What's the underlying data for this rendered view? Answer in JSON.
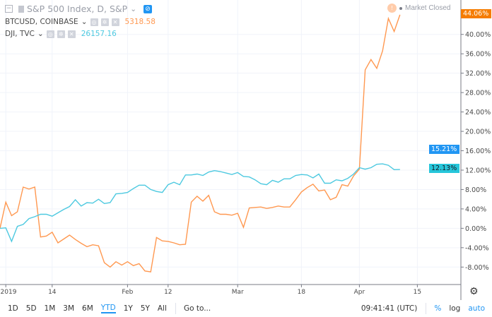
{
  "legend": {
    "main": {
      "title": "S&P 500 Index, D, S&P",
      "chevron": "⌄"
    },
    "series": [
      {
        "label": "BTCUSD, COINBASE",
        "value": "5318.58",
        "color": "#ff9850"
      },
      {
        "label": "DJI, TVC",
        "value": "26157.16",
        "color": "#4dc9e0"
      }
    ]
  },
  "status": {
    "market": "Market Closed"
  },
  "price_labels": [
    {
      "text": "44.06%",
      "color": "#f57c00"
    },
    {
      "text": "15.21%",
      "color": "#2196f3"
    },
    {
      "text": "12.13%",
      "color": "#26c6da"
    }
  ],
  "toolbar": {
    "ranges": [
      "1D",
      "5D",
      "1M",
      "3M",
      "6M",
      "YTD",
      "1Y",
      "5Y",
      "All"
    ],
    "active_range": "YTD",
    "goto": "Go to...",
    "time": "09:41:41 (UTC)",
    "percent": "%",
    "log": "log",
    "auto": "auto"
  },
  "chart_data": {
    "type": "line",
    "ylabel_format": "percent",
    "ylim": [
      -11.6,
      47.1
    ],
    "yticks": [
      "40.00%",
      "36.00%",
      "32.00%",
      "28.00%",
      "24.00%",
      "20.00%",
      "16.00%",
      "12.00%",
      "8.00%",
      "4.00%",
      "0.00%",
      "-4.00%",
      "-8.00%"
    ],
    "ytick_values": [
      40,
      36,
      32,
      28,
      24,
      20,
      16,
      12,
      8,
      4,
      0,
      -4,
      -8
    ],
    "xticks": [
      {
        "date": "2019-01-02",
        "label": "2019"
      },
      {
        "date": "2019-01-14",
        "label": "14"
      },
      {
        "date": "2019-02-01",
        "label": "Feb"
      },
      {
        "date": "2019-02-12",
        "label": "12"
      },
      {
        "date": "2019-03-01",
        "label": "Mar"
      },
      {
        "date": "2019-03-18",
        "label": "18"
      },
      {
        "date": "2019-04-01",
        "label": "Apr"
      },
      {
        "date": "2019-04-15",
        "label": "15"
      }
    ],
    "grid": true,
    "x": [
      "2018-12-31",
      "2019-01-02",
      "2019-01-03",
      "2019-01-04",
      "2019-01-07",
      "2019-01-08",
      "2019-01-09",
      "2019-01-10",
      "2019-01-11",
      "2019-01-14",
      "2019-01-15",
      "2019-01-16",
      "2019-01-17",
      "2019-01-18",
      "2019-01-22",
      "2019-01-23",
      "2019-01-24",
      "2019-01-25",
      "2019-01-28",
      "2019-01-29",
      "2019-01-30",
      "2019-01-31",
      "2019-02-01",
      "2019-02-04",
      "2019-02-05",
      "2019-02-06",
      "2019-02-07",
      "2019-02-08",
      "2019-02-11",
      "2019-02-12",
      "2019-02-13",
      "2019-02-14",
      "2019-02-15",
      "2019-02-19",
      "2019-02-20",
      "2019-02-21",
      "2019-02-22",
      "2019-02-25",
      "2019-02-26",
      "2019-02-27",
      "2019-02-28",
      "2019-03-01",
      "2019-03-04",
      "2019-03-05",
      "2019-03-06",
      "2019-03-07",
      "2019-03-08",
      "2019-03-11",
      "2019-03-12",
      "2019-03-13",
      "2019-03-14",
      "2019-03-15",
      "2019-03-18",
      "2019-03-19",
      "2019-03-20",
      "2019-03-21",
      "2019-03-22",
      "2019-03-25",
      "2019-03-26",
      "2019-03-27",
      "2019-03-28",
      "2019-03-29",
      "2019-04-01",
      "2019-04-02",
      "2019-04-03",
      "2019-04-04",
      "2019-04-05",
      "2019-04-08",
      "2019-04-09",
      "2019-04-10"
    ],
    "series": [
      {
        "name": "BTCUSD, COINBASE",
        "color": "#ff9850",
        "values": [
          0,
          5.4,
          2.6,
          3.4,
          8.5,
          8.1,
          8.5,
          -1.8,
          -1.6,
          -0.8,
          -3.0,
          -2.2,
          -1.4,
          -2.3,
          -3.1,
          -3.8,
          -3.4,
          -3.6,
          -7.1,
          -8.0,
          -6.9,
          -7.6,
          -6.9,
          -7.7,
          -7.3,
          -8.8,
          -9.0,
          -1.9,
          -2.6,
          -2.7,
          -3.0,
          -3.4,
          -3.3,
          5.4,
          6.6,
          5.6,
          6.8,
          3.4,
          2.9,
          2.9,
          2.7,
          3.1,
          0.2,
          4.2,
          4.3,
          4.4,
          4.1,
          4.3,
          4.6,
          4.4,
          4.4,
          5.9,
          7.5,
          8.4,
          9.1,
          7.7,
          7.9,
          5.9,
          6.4,
          9.0,
          8.7,
          10.8,
          12.2,
          32.7,
          34.8,
          33.0,
          36.6,
          43.3,
          40.6,
          44.06
        ]
      },
      {
        "name": "DJI, TVC",
        "color": "#4dc9e0",
        "values": [
          0,
          0.1,
          -2.7,
          0.4,
          0.8,
          2.0,
          2.4,
          2.9,
          2.9,
          2.5,
          3.2,
          3.9,
          4.5,
          5.9,
          4.6,
          5.3,
          5.2,
          6.0,
          5.1,
          5.3,
          7.1,
          7.2,
          7.4,
          8.2,
          8.9,
          8.9,
          8.0,
          7.6,
          7.4,
          9.0,
          9.5,
          9.0,
          11.0,
          11.0,
          11.2,
          10.9,
          11.6,
          11.9,
          11.7,
          11.4,
          11.1,
          11.5,
          10.7,
          10.6,
          10.0,
          9.2,
          9.0,
          9.9,
          9.5,
          10.2,
          10.2,
          10.9,
          11.1,
          11.0,
          10.4,
          11.2,
          9.3,
          9.3,
          10.0,
          9.8,
          10.3,
          11.2,
          12.5,
          12.2,
          12.5,
          13.2,
          13.3,
          13.0,
          12.1,
          12.13
        ]
      }
    ]
  }
}
